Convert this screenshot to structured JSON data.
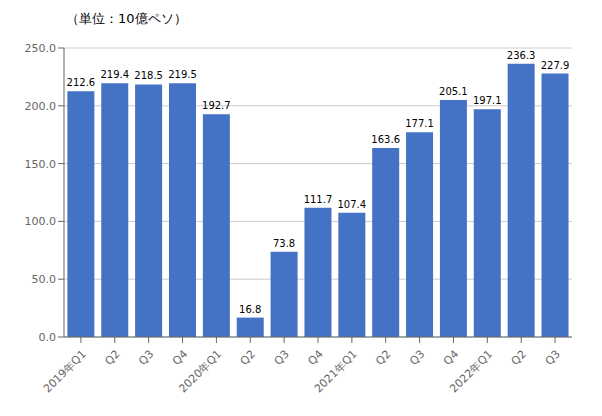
{
  "chart_data": {
    "type": "bar",
    "title": "（単位：10億ペソ）",
    "categories": [
      "2019年Q1",
      "Q2",
      "Q3",
      "Q4",
      "2020年Q1",
      "Q2",
      "Q3",
      "Q4",
      "2021年Q1",
      "Q2",
      "Q3",
      "Q4",
      "2022年Q1",
      "Q2",
      "Q3"
    ],
    "values": [
      212.6,
      219.4,
      218.5,
      219.5,
      192.7,
      16.8,
      73.8,
      111.7,
      107.4,
      163.6,
      177.1,
      205.1,
      197.1,
      236.3,
      227.9
    ],
    "color": "#4472c4",
    "ylim": [
      0,
      250.0
    ],
    "yticks": [
      {
        "value": 0,
        "label": "0.0"
      },
      {
        "value": 50,
        "label": "50.0"
      },
      {
        "value": 100,
        "label": "100.0"
      },
      {
        "value": 150,
        "label": "150.0"
      },
      {
        "value": 200,
        "label": "200.0"
      },
      {
        "value": 250,
        "label": "250.0"
      }
    ],
    "grid": true,
    "data_labels": true
  }
}
